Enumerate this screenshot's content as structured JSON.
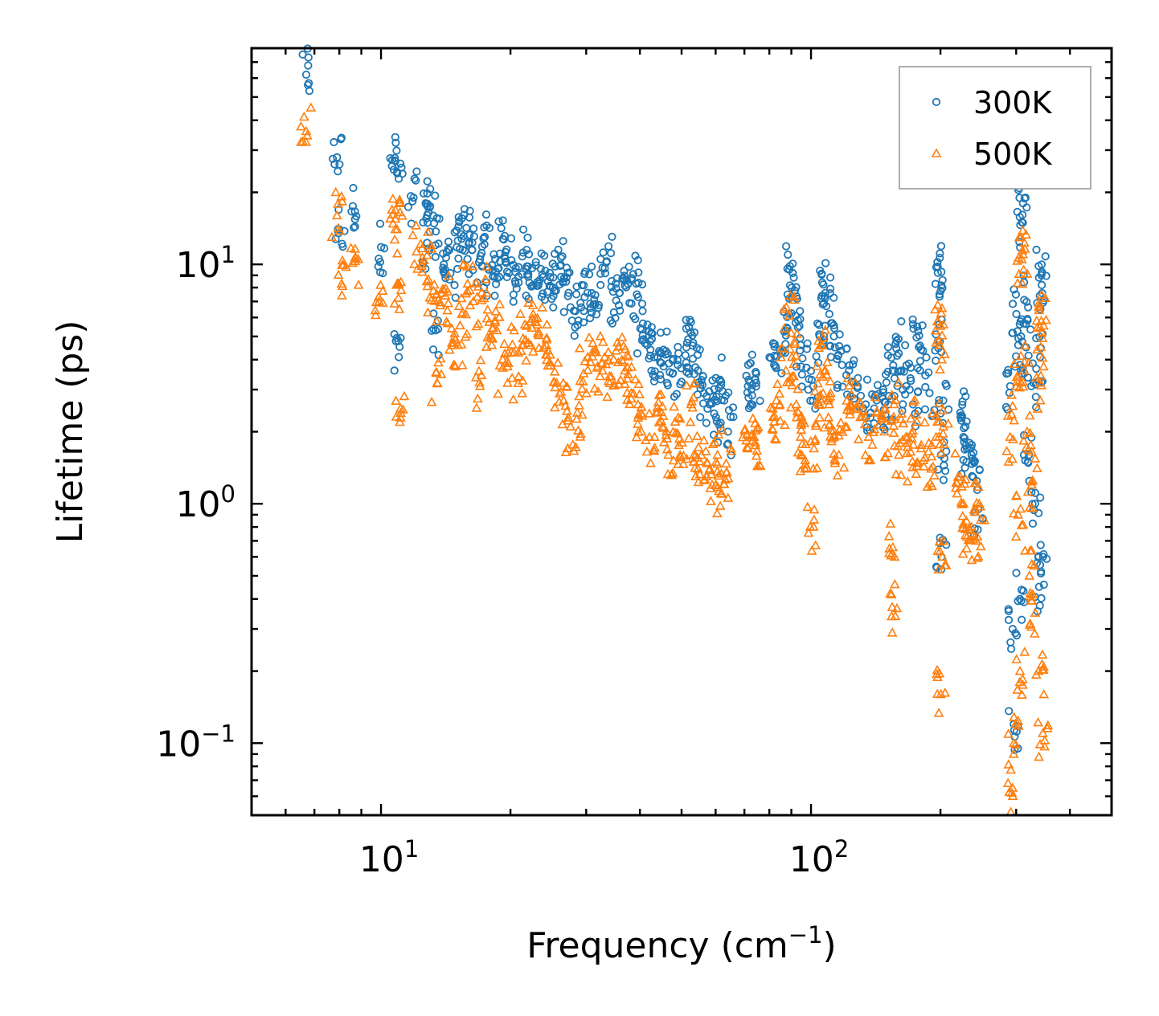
{
  "chart_data": {
    "type": "scatter",
    "title": "",
    "xlabel": {
      "text": "Frequency (cm",
      "sup": "−1",
      "suffix": ")"
    },
    "ylabel": "Lifetime (ps)",
    "xscale": "log",
    "yscale": "log",
    "xlim": [
      5,
      500
    ],
    "ylim": [
      0.05,
      80
    ],
    "x_ticks": [
      {
        "value": 10,
        "base": "10",
        "exp": "1"
      },
      {
        "value": 100,
        "base": "10",
        "exp": "2"
      }
    ],
    "y_ticks": [
      {
        "value": 0.1,
        "base": "10",
        "exp": "−1"
      },
      {
        "value": 1,
        "base": "10",
        "exp": "0"
      },
      {
        "value": 10,
        "base": "10",
        "exp": "1"
      }
    ],
    "legend": {
      "position": "top-right"
    },
    "series": [
      {
        "name": "300K",
        "marker": "circle",
        "color": "#1f77b4",
        "points": [
          [
            6.7,
            62
          ],
          [
            7.9,
            28
          ],
          [
            8.0,
            14
          ],
          [
            8.6,
            17.5
          ],
          [
            10.0,
            11.8
          ],
          [
            10.8,
            27
          ],
          [
            10.9,
            24
          ],
          [
            11.0,
            4.1
          ],
          [
            11.9,
            19
          ],
          [
            12.7,
            18
          ],
          [
            13.0,
            17.5
          ],
          [
            12.8,
            12.3
          ],
          [
            13.6,
            12.2
          ],
          [
            13.4,
            5.3
          ],
          [
            14.0,
            10
          ],
          [
            14.5,
            9.2
          ],
          [
            15.0,
            11.8
          ],
          [
            15.4,
            12.8
          ],
          [
            15.8,
            14.2
          ],
          [
            16.3,
            11.5
          ],
          [
            16.9,
            10.2
          ],
          [
            17.4,
            13
          ],
          [
            17.8,
            9.5
          ],
          [
            18.2,
            8.9
          ],
          [
            18.9,
            11.1
          ],
          [
            19.3,
            12.7
          ],
          [
            20.1,
            10.4
          ],
          [
            20.9,
            8.4
          ],
          [
            21.4,
            11.2
          ],
          [
            22.0,
            9.1
          ],
          [
            22.6,
            8.2
          ],
          [
            23.4,
            8.6
          ],
          [
            24.1,
            9.4
          ],
          [
            24.8,
            8.1
          ],
          [
            25.4,
            9.8
          ],
          [
            26.4,
            10.8
          ],
          [
            27.3,
            7.6
          ],
          [
            28.1,
            6.4
          ],
          [
            29.1,
            6.9
          ],
          [
            30.2,
            7.6
          ],
          [
            31.3,
            7.1
          ],
          [
            32.4,
            8.2
          ],
          [
            33.5,
            10.3
          ],
          [
            34.8,
            6.3
          ],
          [
            35.9,
            7.6
          ],
          [
            37.3,
            8.6
          ],
          [
            38.6,
            9.1
          ],
          [
            39.6,
            7.3
          ],
          [
            40.1,
            5.4
          ],
          [
            41.6,
            4.6
          ],
          [
            43.2,
            4.1
          ],
          [
            44.6,
            3.9
          ],
          [
            45.9,
            4.2
          ],
          [
            47.6,
            3.5
          ],
          [
            49.0,
            3.8
          ],
          [
            51.3,
            4.5
          ],
          [
            52.5,
            5.2
          ],
          [
            53.2,
            4.7
          ],
          [
            54.6,
            3.6
          ],
          [
            56.3,
            2.9
          ],
          [
            58.1,
            2.6
          ],
          [
            60.1,
            2.3
          ],
          [
            61.4,
            3.3
          ],
          [
            62.8,
            2.7
          ],
          [
            64.1,
            2.0
          ],
          [
            71.3,
            3.1
          ],
          [
            72.6,
            3.0
          ],
          [
            74.2,
            3.3
          ],
          [
            82.1,
            3.8
          ],
          [
            84.6,
            4.4
          ],
          [
            87.3,
            5.3
          ],
          [
            89.0,
            9.5
          ],
          [
            90.2,
            8.0
          ],
          [
            92.1,
            6.1
          ],
          [
            94.6,
            4.6
          ],
          [
            97.6,
            3.7
          ],
          [
            101.2,
            3.1
          ],
          [
            104.8,
            5.0
          ],
          [
            106.2,
            8.4
          ],
          [
            108.0,
            7.6
          ],
          [
            110.3,
            6.2
          ],
          [
            113.6,
            4.5
          ],
          [
            118.1,
            3.8
          ],
          [
            122.6,
            3.6
          ],
          [
            128.3,
            3.1
          ],
          [
            134.1,
            2.6
          ],
          [
            140.3,
            2.5
          ],
          [
            146.2,
            2.8
          ],
          [
            151.2,
            2.6
          ],
          [
            155.0,
            3.6
          ],
          [
            158.1,
            4.8
          ],
          [
            162.3,
            3.6
          ],
          [
            166.4,
            3.1
          ],
          [
            172.6,
            2.6
          ],
          [
            176.5,
            5.5
          ],
          [
            180.3,
            4.4
          ],
          [
            188.6,
            2.9
          ],
          [
            195.2,
            5.1
          ],
          [
            197.0,
            9.8
          ],
          [
            199.0,
            7.5
          ],
          [
            200.5,
            1.6
          ],
          [
            201.1,
            0.6
          ],
          [
            203.0,
            2.7
          ],
          [
            222.4,
            2.4
          ],
          [
            226.1,
            1.9
          ],
          [
            230.3,
            1.7
          ],
          [
            236.2,
            1.6
          ],
          [
            240.2,
            1.5
          ],
          [
            245.1,
            0.95
          ],
          [
            290.4,
            3.1
          ],
          [
            294.3,
            0.3
          ],
          [
            296.1,
            0.12
          ],
          [
            300.2,
            6.2
          ],
          [
            303.4,
            4.6
          ],
          [
            306.1,
            0.4
          ],
          [
            309.4,
            15
          ],
          [
            311.2,
            18
          ],
          [
            313.2,
            7.1
          ],
          [
            316.4,
            4.5
          ],
          [
            321.3,
            1.6
          ],
          [
            325.2,
            3.1
          ],
          [
            332.1,
            1.0
          ],
          [
            339.2,
            0.45
          ],
          [
            341.0,
            4.1
          ],
          [
            343.2,
            9.0
          ],
          [
            344.1,
            8.2
          ],
          [
            346.3,
            0.6
          ]
        ]
      },
      {
        "name": "500K",
        "marker": "triangle",
        "color": "#ff7f0e",
        "points": [
          [
            6.7,
            36
          ],
          [
            7.9,
            16
          ],
          [
            8.1,
            8.3
          ],
          [
            8.7,
            10.3
          ],
          [
            9.9,
            7.0
          ],
          [
            10.8,
            15.5
          ],
          [
            10.9,
            14
          ],
          [
            11.0,
            8.3
          ],
          [
            11.1,
            2.5
          ],
          [
            12.1,
            11.3
          ],
          [
            12.8,
            10.9
          ],
          [
            13.1,
            7.1
          ],
          [
            13.6,
            7.1
          ],
          [
            13.5,
            3.2
          ],
          [
            14.1,
            7.4
          ],
          [
            14.6,
            5.4
          ],
          [
            15.1,
            4.6
          ],
          [
            15.5,
            6.3
          ],
          [
            15.9,
            8.3
          ],
          [
            16.4,
            7.0
          ],
          [
            17.0,
            3.1
          ],
          [
            17.6,
            7.6
          ],
          [
            18.1,
            4.6
          ],
          [
            18.6,
            5.3
          ],
          [
            19.2,
            3.7
          ],
          [
            20.1,
            4.3
          ],
          [
            20.9,
            3.4
          ],
          [
            21.6,
            5.6
          ],
          [
            22.3,
            4.6
          ],
          [
            23.1,
            5.6
          ],
          [
            23.9,
            4.5
          ],
          [
            24.7,
            3.9
          ],
          [
            25.6,
            3.2
          ],
          [
            26.6,
            2.7
          ],
          [
            27.6,
            2.1
          ],
          [
            28.6,
            2.4
          ],
          [
            29.6,
            3.5
          ],
          [
            30.7,
            3.9
          ],
          [
            31.8,
            3.7
          ],
          [
            33.1,
            4.1
          ],
          [
            34.3,
            3.4
          ],
          [
            35.6,
            3.9
          ],
          [
            36.9,
            3.6
          ],
          [
            38.2,
            2.9
          ],
          [
            39.6,
            2.6
          ],
          [
            40.3,
            2.0
          ],
          [
            42.1,
            1.9
          ],
          [
            43.6,
            2.4
          ],
          [
            45.1,
            2.1
          ],
          [
            46.6,
            1.6
          ],
          [
            48.3,
            2.2
          ],
          [
            50.1,
            1.8
          ],
          [
            52.6,
            2.6
          ],
          [
            53.4,
            1.6
          ],
          [
            55.1,
            1.5
          ],
          [
            57.1,
            1.3
          ],
          [
            58.9,
            1.2
          ],
          [
            60.6,
            1.6
          ],
          [
            62.0,
            1.1
          ],
          [
            63.6,
            1.35
          ],
          [
            71.3,
            1.7
          ],
          [
            72.9,
            1.95
          ],
          [
            74.1,
            1.8
          ],
          [
            82.1,
            2.2
          ],
          [
            84.6,
            2.6
          ],
          [
            87.4,
            3.6
          ],
          [
            89.0,
            6.1
          ],
          [
            90.3,
            4.1
          ],
          [
            92.4,
            2.6
          ],
          [
            94.6,
            1.9
          ],
          [
            96.8,
            1.4
          ],
          [
            99.6,
            0.8
          ],
          [
            101.6,
            1.7
          ],
          [
            104.3,
            2.6
          ],
          [
            106.1,
            4.6
          ],
          [
            108.0,
            3.6
          ],
          [
            110.2,
            2.6
          ],
          [
            113.1,
            1.9
          ],
          [
            116.1,
            1.6
          ],
          [
            120.1,
            2.1
          ],
          [
            124.1,
            2.6
          ],
          [
            130.2,
            2.3
          ],
          [
            136.1,
            1.9
          ],
          [
            142.1,
            2.4
          ],
          [
            148.2,
            2.0
          ],
          [
            152.2,
            0.65
          ],
          [
            154.4,
            0.37
          ],
          [
            156.0,
            2.6
          ],
          [
            160.1,
            1.6
          ],
          [
            166.3,
            1.9
          ],
          [
            172.1,
            1.5
          ],
          [
            176.3,
            2.2
          ],
          [
            180.1,
            1.7
          ],
          [
            190.2,
            1.4
          ],
          [
            195.3,
            1.9
          ],
          [
            197.1,
            5.8
          ],
          [
            199.1,
            4.6
          ],
          [
            200.4,
            0.16
          ],
          [
            202.1,
            0.6
          ],
          [
            203.1,
            2.1
          ],
          [
            222.1,
            1.3
          ],
          [
            226.3,
            1.0
          ],
          [
            230.1,
            0.65
          ],
          [
            236.1,
            0.8
          ],
          [
            242.1,
            0.7
          ],
          [
            246.1,
            1.0
          ],
          [
            290.3,
            1.9
          ],
          [
            294.4,
            0.065
          ],
          [
            296.1,
            0.1
          ],
          [
            300.4,
            3.1
          ],
          [
            303.1,
            0.9
          ],
          [
            306.2,
            0.2
          ],
          [
            309.1,
            10.5
          ],
          [
            311.1,
            11
          ],
          [
            313.1,
            3.6
          ],
          [
            318.1,
            2.0
          ],
          [
            322.1,
            0.5
          ],
          [
            326.1,
            1.2
          ],
          [
            332.2,
            0.35
          ],
          [
            338.1,
            0.2
          ],
          [
            341.2,
            3.2
          ],
          [
            343.1,
            5.8
          ],
          [
            344.2,
            5.2
          ],
          [
            346.1,
            0.11
          ]
        ]
      }
    ]
  }
}
